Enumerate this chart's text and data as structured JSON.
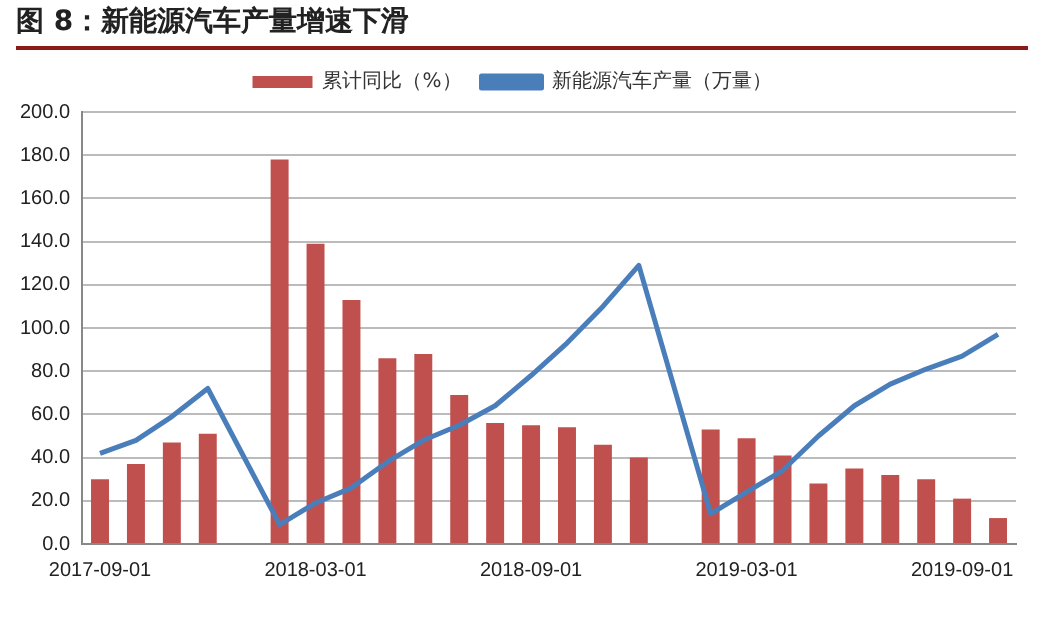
{
  "chart_data": {
    "type": "bar",
    "title": "图 8：新能源汽车产量增速下滑",
    "categories": [
      "2017-09-01",
      null,
      null,
      null,
      null,
      null,
      "2018-03-01",
      null,
      null,
      null,
      null,
      null,
      "2018-09-01",
      null,
      null,
      null,
      null,
      null,
      "2019-03-01",
      null,
      null,
      null,
      null,
      null,
      "2019-09-01",
      null
    ],
    "series": [
      {
        "name": "累计同比（%）",
        "color": "#c0504d",
        "values": [
          30,
          37,
          47,
          51,
          null,
          178,
          139,
          113,
          86,
          88,
          69,
          56,
          55,
          54,
          46,
          40,
          null,
          53,
          49,
          41,
          28,
          35,
          32,
          30,
          21,
          12
        ]
      },
      {
        "name": "新能源汽车产量（万量）",
        "type": "line",
        "color": "#4a7ebb",
        "values": [
          42,
          48,
          59,
          72,
          null,
          9,
          19,
          26,
          38,
          48,
          55,
          64,
          78,
          93,
          110,
          129,
          null,
          14,
          24,
          34,
          50,
          64,
          74,
          81,
          87,
          97
        ]
      }
    ],
    "ylim": [
      0,
      200
    ],
    "yticks": [
      {
        "value": 0,
        "label": "0.0"
      },
      {
        "value": 20,
        "label": "20.0"
      },
      {
        "value": 40,
        "label": "40.0"
      },
      {
        "value": 60,
        "label": "60.0"
      },
      {
        "value": 80,
        "label": "80.0"
      },
      {
        "value": 100,
        "label": "100.0"
      },
      {
        "value": 120,
        "label": "120.0"
      },
      {
        "value": 140,
        "label": "140.0"
      },
      {
        "value": 160,
        "label": "160.0"
      },
      {
        "value": 180,
        "label": "180.0"
      },
      {
        "value": 200,
        "label": "200.0"
      }
    ],
    "grid": "y",
    "legend": "top",
    "marker": "none",
    "line_style": "solid"
  }
}
